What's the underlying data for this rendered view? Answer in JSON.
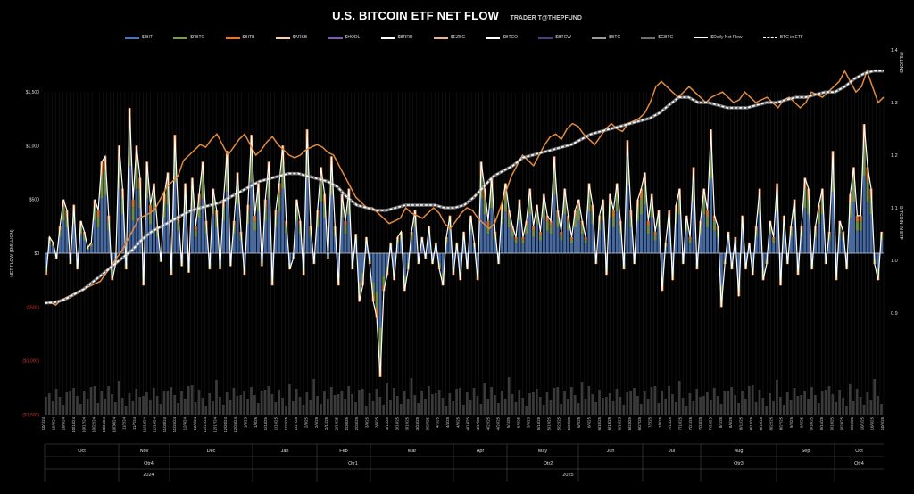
{
  "title": "U.S. BITCOIN ETF NET FLOW",
  "subtitle": "TRADER T@THEPFUND",
  "colors": {
    "IBIT": "#4f74b4",
    "FBTC": "#7a9a52",
    "BITB": "#e07a2e",
    "ARKB": "#f0d0b0",
    "HODL": "#7b5ea8",
    "BRRR": "#ffffff",
    "EZBC": "#e3b4a4",
    "BTCO": "#ffffff",
    "BTCW": "#4b4077",
    "BTC": "#9a9a9a",
    "GBTC": "#6f6f6f",
    "daily": "#ffffff",
    "btc_line": "#e28a3e",
    "holdings": "#ffffff",
    "negative_tick": "#c0392b"
  },
  "legend": [
    {
      "key": "IBIT",
      "label": "$IBIT"
    },
    {
      "key": "FBTC",
      "label": "$FBTC"
    },
    {
      "key": "BITB",
      "label": "$BITB"
    },
    {
      "key": "ARKB",
      "label": "$ARKB"
    },
    {
      "key": "HODL",
      "label": "$HODL"
    },
    {
      "key": "BRRR",
      "label": "$BRRR"
    },
    {
      "key": "EZBC",
      "label": "$EZBC"
    },
    {
      "key": "BTCO",
      "label": "$BTCO"
    },
    {
      "key": "BTCW",
      "label": "$BTCW"
    },
    {
      "key": "BTC",
      "label": "$BTC"
    },
    {
      "key": "GBTC",
      "label": "$GBTC"
    },
    {
      "key": "daily",
      "label": "$Daily Net Flow",
      "style": "line"
    },
    {
      "key": "holdings",
      "label": "BTC in ETF",
      "style": "dash"
    }
  ],
  "chart_data": {
    "type": "bar",
    "ylabel": "NET FLOW ($MILLION)",
    "y2label": "BITCOIN IN ETF",
    "y2unit": "MILLIONS",
    "ylim": [
      -1500,
      1500
    ],
    "y_ticks": [
      1500,
      1000,
      500,
      0,
      -500,
      -1000,
      -1500
    ],
    "y_tick_labels": [
      "$1,500",
      "$1,000",
      "$500",
      "$0",
      "($500)",
      "($1,000)",
      "($1,500)"
    ],
    "y2lim": [
      0.8,
      1.4
    ],
    "y2_ticks": [
      1.4,
      1.3,
      1.2,
      1.1,
      1.0,
      0.9
    ],
    "y2_tick_labels": [
      "1.4",
      "1.3",
      "1.2",
      "1.1",
      "1.0",
      "0.9"
    ],
    "x_tick_labels": [
      "10/1/24",
      "10/4/24",
      "10/9/24",
      "10/14/24",
      "10/17/24",
      "10/22/24",
      "10/25/24",
      "10/30/24",
      "11/2/24",
      "11/7/24",
      "11/12/24",
      "11/15/24",
      "11/20/24",
      "11/25/24",
      "12/4/24",
      "12/9/24",
      "12/12/24",
      "12/17/24",
      "12/20/24",
      "12/26/24",
      "1/3/25",
      "1/8/25",
      "1/13/25",
      "1/16/25",
      "1/22/25",
      "1/27/25",
      "2/3/25",
      "2/6/25",
      "2/11/25",
      "2/14/25",
      "2/20/25",
      "2/25/25",
      "3/3/25",
      "3/6/25",
      "3/11/25",
      "3/14/25",
      "3/19/25",
      "3/24/25",
      "3/27/25",
      "4/1/25",
      "4/4/25",
      "4/9/25",
      "4/14/25",
      "4/17/25",
      "4/22/25",
      "4/25/25",
      "5/1/25",
      "5/6/25",
      "5/9/25",
      "5/14/25",
      "5/19/25",
      "5/22/25",
      "5/28/25",
      "6/2/25",
      "6/5/25",
      "6/10/25",
      "6/13/25",
      "6/18/25",
      "6/24/25",
      "6/27/25",
      "7/2/25",
      "7/8/25",
      "7/11/25",
      "7/16/25",
      "7/21/25",
      "7/24/25",
      "7/29/25",
      "8/1/25",
      "8/6/25",
      "8/11/25",
      "8/14/25",
      "8/19/25",
      "8/22/25",
      "8/27/25",
      "9/2/25",
      "9/5/25",
      "9/10/25",
      "9/15/25",
      "9/18/25",
      "9/23/25",
      "9/26/25",
      "10/1/25",
      "10/6/25",
      "10/9/25"
    ],
    "months": [
      "Oct",
      "Nov",
      "Dec",
      "Jan",
      "Feb",
      "Mar",
      "Apr",
      "May",
      "Jun",
      "Jul",
      "Aug",
      "Sep",
      "Oct"
    ],
    "quarters": [
      "Qtr4",
      "Qtr1",
      "Qtr2",
      "Qtr3",
      "Qtr4"
    ],
    "years": [
      "2024",
      "2025"
    ],
    "daily_net_flow": [
      -200,
      150,
      100,
      -50,
      250,
      500,
      400,
      -100,
      450,
      -150,
      300,
      200,
      50,
      100,
      500,
      400,
      850,
      900,
      350,
      -250,
      -100,
      1000,
      600,
      -150,
      1350,
      500,
      1000,
      700,
      -300,
      850,
      450,
      650,
      250,
      -80,
      550,
      750,
      -200,
      1100,
      350,
      -120,
      650,
      -180,
      700,
      250,
      550,
      850,
      300,
      -150,
      600,
      400,
      -150,
      500,
      950,
      -120,
      300,
      750,
      200,
      -200,
      450,
      1100,
      350,
      650,
      -120,
      500,
      850,
      -300,
      400,
      650,
      1000,
      300,
      -150,
      -50,
      500,
      300,
      -200,
      1150,
      250,
      -100,
      400,
      800,
      550,
      -50,
      900,
      250,
      -300,
      550,
      300,
      600,
      -150,
      180,
      -450,
      -300,
      150,
      -100,
      -450,
      -600,
      -1150,
      -350,
      -200,
      100,
      -250,
      150,
      200,
      -350,
      -150,
      200,
      400,
      -100,
      150,
      -50,
      250,
      -100,
      100,
      -150,
      -300,
      150,
      350,
      -200,
      100,
      -250,
      200,
      -150,
      350,
      100,
      -250,
      850,
      600,
      300,
      700,
      200,
      -100,
      450,
      650,
      400,
      250,
      150,
      500,
      150,
      300,
      600,
      250,
      450,
      200,
      550,
      350,
      300,
      900,
      400,
      200,
      600,
      350,
      150,
      400,
      500,
      300,
      150,
      650,
      450,
      -100,
      350,
      500,
      -200,
      550,
      400,
      650,
      300,
      -150,
      1050,
      400,
      -100,
      500,
      600,
      750,
      300,
      550,
      200,
      400,
      -350,
      100,
      400,
      -250,
      450,
      600,
      -100,
      350,
      150,
      800,
      -150,
      300,
      600,
      400,
      1150,
      350,
      250,
      -500,
      -100,
      200,
      -150,
      150,
      -400,
      350,
      -150,
      100,
      -200,
      250,
      600,
      -250,
      -100,
      300,
      150,
      650,
      -300,
      350,
      -100,
      250,
      500,
      -200,
      250,
      700,
      600,
      -150,
      250,
      450,
      600,
      -100,
      200,
      950,
      -250,
      300,
      200,
      -150,
      550,
      800,
      350,
      350,
      1200,
      800,
      600,
      -100,
      -250,
      200
    ],
    "btc_price_line": [
      0.918,
      0.92,
      0.915,
      0.925,
      0.93,
      0.935,
      0.94,
      0.945,
      0.95,
      0.955,
      0.96,
      0.975,
      0.99,
      1.005,
      1.02,
      1.04,
      1.06,
      1.08,
      1.085,
      1.09,
      1.1,
      1.12,
      1.14,
      1.15,
      1.16,
      1.19,
      1.2,
      1.21,
      1.22,
      1.215,
      1.23,
      1.24,
      1.22,
      1.2,
      1.215,
      1.23,
      1.24,
      1.22,
      1.2,
      1.21,
      1.225,
      1.235,
      1.22,
      1.21,
      1.2,
      1.195,
      1.2,
      1.21,
      1.215,
      1.22,
      1.215,
      1.205,
      1.2,
      1.18,
      1.16,
      1.14,
      1.12,
      1.11,
      1.1,
      1.1,
      1.09,
      1.08,
      1.07,
      1.075,
      1.08,
      1.1,
      1.09,
      1.085,
      1.08,
      1.09,
      1.1,
      1.09,
      1.07,
      1.06,
      1.075,
      1.09,
      1.1,
      1.095,
      1.08,
      1.07,
      1.06,
      1.07,
      1.1,
      1.13,
      1.16,
      1.18,
      1.2,
      1.19,
      1.18,
      1.2,
      1.22,
      1.235,
      1.24,
      1.23,
      1.25,
      1.26,
      1.255,
      1.24,
      1.23,
      1.22,
      1.235,
      1.25,
      1.26,
      1.25,
      1.245,
      1.26,
      1.265,
      1.27,
      1.28,
      1.3,
      1.33,
      1.34,
      1.33,
      1.32,
      1.31,
      1.32,
      1.33,
      1.32,
      1.31,
      1.3,
      1.31,
      1.315,
      1.32,
      1.31,
      1.3,
      1.305,
      1.32,
      1.31,
      1.3,
      1.305,
      1.31,
      1.3,
      1.29,
      1.305,
      1.31,
      1.3,
      1.29,
      1.3,
      1.32,
      1.315,
      1.31,
      1.32,
      1.33,
      1.34,
      1.36,
      1.34,
      1.32,
      1.33,
      1.36,
      1.33,
      1.3,
      1.31
    ],
    "btc_in_etf": [
      0.919,
      0.92,
      0.925,
      0.935,
      0.945,
      0.96,
      0.975,
      0.99,
      1.005,
      1.02,
      1.04,
      1.055,
      1.065,
      1.075,
      1.085,
      1.095,
      1.1,
      1.105,
      1.11,
      1.12,
      1.13,
      1.14,
      1.15,
      1.155,
      1.16,
      1.165,
      1.165,
      1.16,
      1.155,
      1.15,
      1.14,
      1.12,
      1.105,
      1.1,
      1.095,
      1.095,
      1.1,
      1.105,
      1.105,
      1.105,
      1.105,
      1.1,
      1.1,
      1.105,
      1.12,
      1.14,
      1.16,
      1.17,
      1.18,
      1.195,
      1.2,
      1.205,
      1.21,
      1.215,
      1.22,
      1.23,
      1.24,
      1.245,
      1.25,
      1.255,
      1.26,
      1.265,
      1.27,
      1.28,
      1.295,
      1.31,
      1.31,
      1.3,
      1.3,
      1.295,
      1.29,
      1.29,
      1.29,
      1.295,
      1.3,
      1.3,
      1.305,
      1.31,
      1.31,
      1.315,
      1.32,
      1.32,
      1.33,
      1.345,
      1.355,
      1.36,
      1.36
    ]
  }
}
